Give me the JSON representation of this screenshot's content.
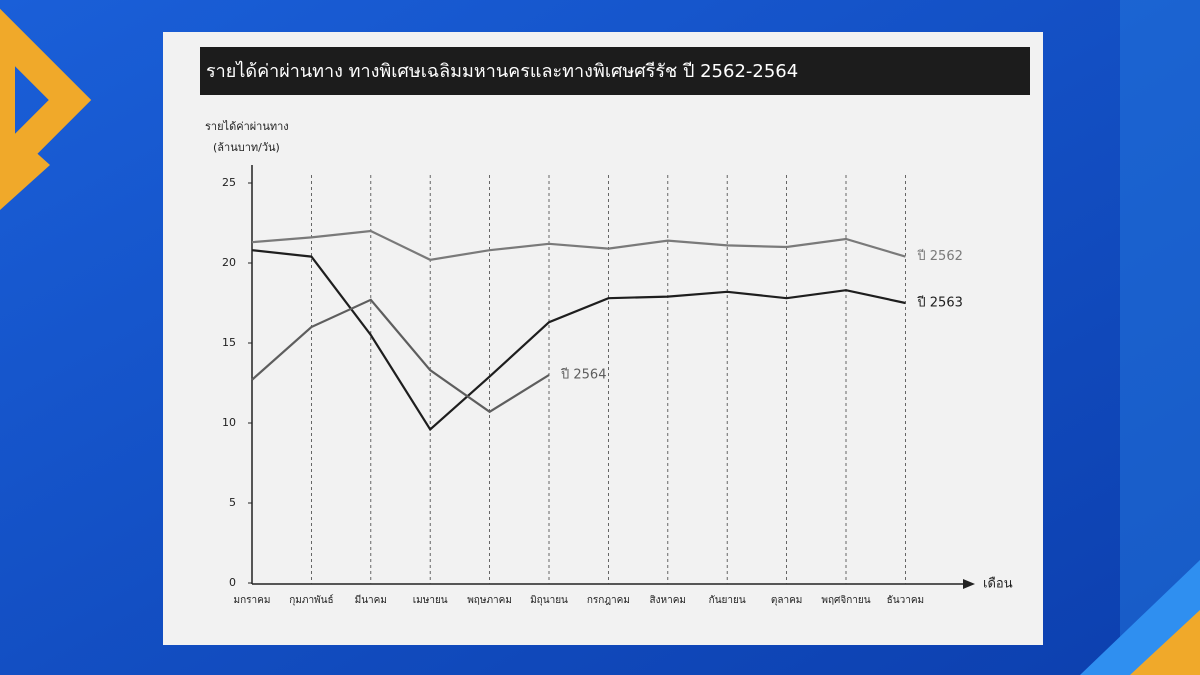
{
  "chart_data": {
    "type": "line",
    "title": "รายได้ค่าผ่านทาง ทางพิเศษเฉลิมมหานครและทางพิเศษศรีรัช ปี 2562-2564",
    "y_label": [
      "รายได้ค่าผ่านทาง",
      "(ล้านบาท/วัน)"
    ],
    "x_label": "เดือน",
    "categories": [
      "มกราคม",
      "กุมภาพันธ์",
      "มีนาคม",
      "เมษายน",
      "พฤษภาคม",
      "มิถุนายน",
      "กรกฎาคม",
      "สิงหาคม",
      "กันยายน",
      "ตุลาคม",
      "พฤศจิกายน",
      "ธันวาคม"
    ],
    "series": [
      {
        "name": "ปี 2562",
        "color": "#7a7a7a",
        "values": [
          21.3,
          21.6,
          22.0,
          20.2,
          20.8,
          21.2,
          20.9,
          21.4,
          21.1,
          21.0,
          21.5,
          20.4
        ]
      },
      {
        "name": "ปี 2563",
        "color": "#1e1e1e",
        "values": [
          20.8,
          20.4,
          15.5,
          9.6,
          12.9,
          16.3,
          17.8,
          17.9,
          18.2,
          17.8,
          18.3,
          17.5
        ]
      },
      {
        "name": "ปี 2564",
        "color": "#5e5e5e",
        "values": [
          12.7,
          16.0,
          17.7,
          13.3,
          10.7,
          13.0,
          null,
          null,
          null,
          null,
          null,
          null
        ]
      }
    ],
    "ylim": [
      0,
      25
    ],
    "yticks": [
      0,
      5,
      10,
      15,
      20,
      25
    ],
    "grid": true
  }
}
